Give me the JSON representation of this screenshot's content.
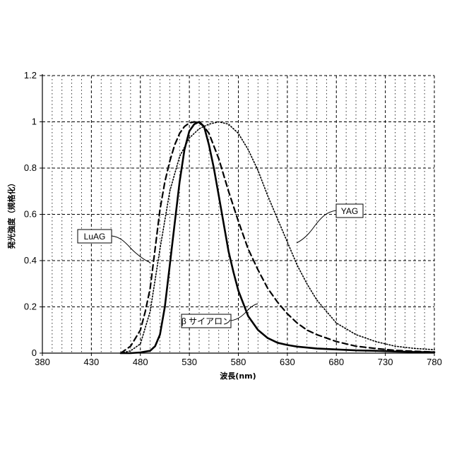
{
  "chart_data": {
    "type": "line",
    "xlabel": "波長(nm)",
    "ylabel": "発光強度（規格化）",
    "xlim": [
      380,
      780
    ],
    "ylim": [
      0,
      1.2
    ],
    "x_ticks": [
      "380",
      "430",
      "480",
      "530",
      "580",
      "630",
      "680",
      "730",
      "780"
    ],
    "y_ticks": [
      "0",
      "0.2",
      "0.4",
      "0.6",
      "0.8",
      "1",
      "1.2"
    ],
    "grid": true,
    "series": [
      {
        "name": "β サイアロン",
        "style": "solid",
        "color": "#000000",
        "x": [
          460,
          470,
          480,
          490,
          495,
          500,
          505,
          510,
          515,
          520,
          525,
          530,
          535,
          540,
          545,
          550,
          555,
          560,
          565,
          570,
          575,
          580,
          590,
          600,
          610,
          620,
          630,
          640,
          660,
          680,
          700,
          720,
          740,
          760,
          780
        ],
        "y": [
          0.0,
          0.0,
          0.003,
          0.01,
          0.03,
          0.08,
          0.2,
          0.38,
          0.56,
          0.74,
          0.88,
          0.96,
          0.99,
          1.0,
          0.98,
          0.9,
          0.8,
          0.68,
          0.56,
          0.44,
          0.35,
          0.27,
          0.16,
          0.1,
          0.065,
          0.045,
          0.035,
          0.028,
          0.02,
          0.016,
          0.012,
          0.01,
          0.007,
          0.005,
          0.004
        ]
      },
      {
        "name": "LuAG",
        "style": "dashed",
        "color": "#000000",
        "x": [
          460,
          470,
          480,
          485,
          490,
          495,
          500,
          505,
          510,
          515,
          520,
          525,
          530,
          535,
          540,
          545,
          550,
          560,
          570,
          580,
          590,
          600,
          610,
          620,
          630,
          640,
          650,
          660,
          680,
          700,
          720,
          740,
          760,
          780
        ],
        "y": [
          0.0,
          0.03,
          0.1,
          0.18,
          0.28,
          0.45,
          0.62,
          0.74,
          0.83,
          0.9,
          0.95,
          0.98,
          0.995,
          1.0,
          0.995,
          0.98,
          0.95,
          0.84,
          0.7,
          0.57,
          0.45,
          0.36,
          0.28,
          0.22,
          0.17,
          0.13,
          0.1,
          0.08,
          0.05,
          0.03,
          0.02,
          0.012,
          0.008,
          0.005
        ]
      },
      {
        "name": "YAG",
        "style": "dotted",
        "color": "#000000",
        "x": [
          460,
          470,
          480,
          490,
          500,
          510,
          520,
          530,
          540,
          550,
          560,
          570,
          580,
          590,
          600,
          610,
          620,
          630,
          640,
          650,
          660,
          680,
          700,
          720,
          740,
          760,
          780
        ],
        "y": [
          0.0,
          0.01,
          0.04,
          0.18,
          0.45,
          0.7,
          0.85,
          0.93,
          0.97,
          0.99,
          1.0,
          0.99,
          0.95,
          0.88,
          0.79,
          0.68,
          0.58,
          0.48,
          0.38,
          0.3,
          0.23,
          0.13,
          0.08,
          0.05,
          0.03,
          0.02,
          0.015
        ]
      }
    ],
    "annotations": [
      {
        "label": "LuAG"
      },
      {
        "label": "YAG"
      },
      {
        "label": "β サイアロン"
      }
    ]
  }
}
